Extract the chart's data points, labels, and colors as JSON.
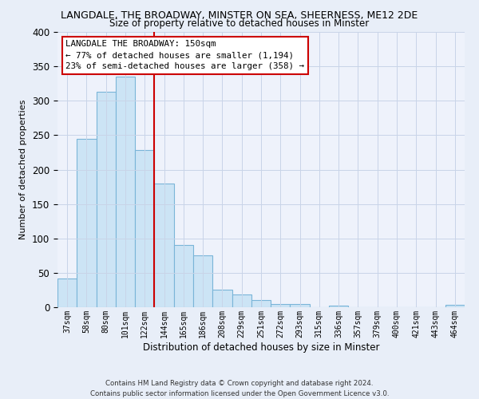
{
  "title": "LANGDALE, THE BROADWAY, MINSTER ON SEA, SHEERNESS, ME12 2DE",
  "subtitle": "Size of property relative to detached houses in Minster",
  "xlabel": "Distribution of detached houses by size in Minster",
  "ylabel": "Number of detached properties",
  "bar_labels": [
    "37sqm",
    "58sqm",
    "80sqm",
    "101sqm",
    "122sqm",
    "144sqm",
    "165sqm",
    "186sqm",
    "208sqm",
    "229sqm",
    "251sqm",
    "272sqm",
    "293sqm",
    "315sqm",
    "336sqm",
    "357sqm",
    "379sqm",
    "400sqm",
    "421sqm",
    "443sqm",
    "464sqm"
  ],
  "bar_values": [
    42,
    245,
    313,
    335,
    228,
    180,
    90,
    75,
    25,
    18,
    10,
    5,
    5,
    0,
    2,
    0,
    0,
    0,
    0,
    0,
    3
  ],
  "bar_color": "#cce4f5",
  "bar_edge_color": "#7ab5d8",
  "vline_x": 5.0,
  "vline_color": "#cc0000",
  "annotation_title": "LANGDALE THE BROADWAY: 150sqm",
  "annotation_line1": "← 77% of detached houses are smaller (1,194)",
  "annotation_line2": "23% of semi-detached houses are larger (358) →",
  "ylim": [
    0,
    400
  ],
  "yticks": [
    0,
    50,
    100,
    150,
    200,
    250,
    300,
    350,
    400
  ],
  "footnote1": "Contains HM Land Registry data © Crown copyright and database right 2024.",
  "footnote2": "Contains public sector information licensed under the Open Government Licence v3.0.",
  "bg_color": "#e8eef8",
  "plot_bg_color": "#eef2fb"
}
